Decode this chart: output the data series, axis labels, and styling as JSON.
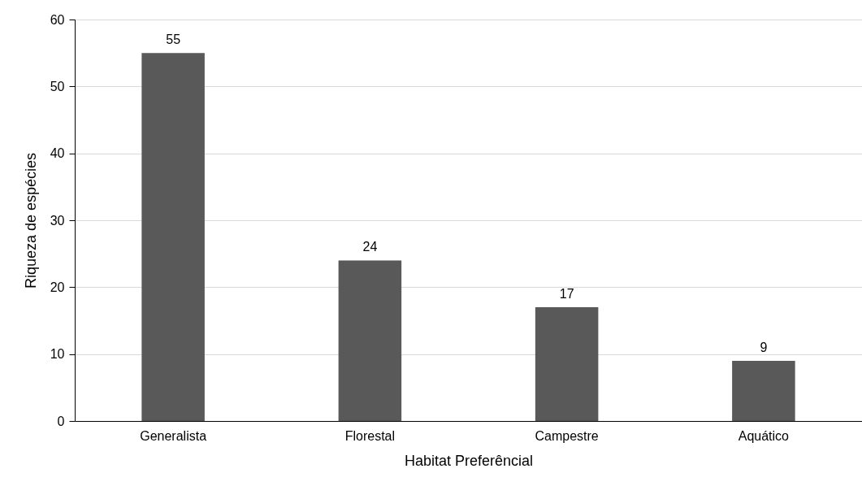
{
  "chart_data": {
    "type": "bar",
    "xlabel": "Habitat Preferêncial",
    "ylabel": "Riqueza de espécies",
    "categories": [
      "Generalista",
      "Florestal",
      "Campestre",
      "Aquático"
    ],
    "values": [
      55,
      24,
      17,
      9
    ],
    "color": "#595959",
    "ylim": [
      0,
      60
    ],
    "yticks": [
      0,
      10,
      20,
      30,
      40,
      50,
      60
    ],
    "grid": "y",
    "data_labels": true
  }
}
